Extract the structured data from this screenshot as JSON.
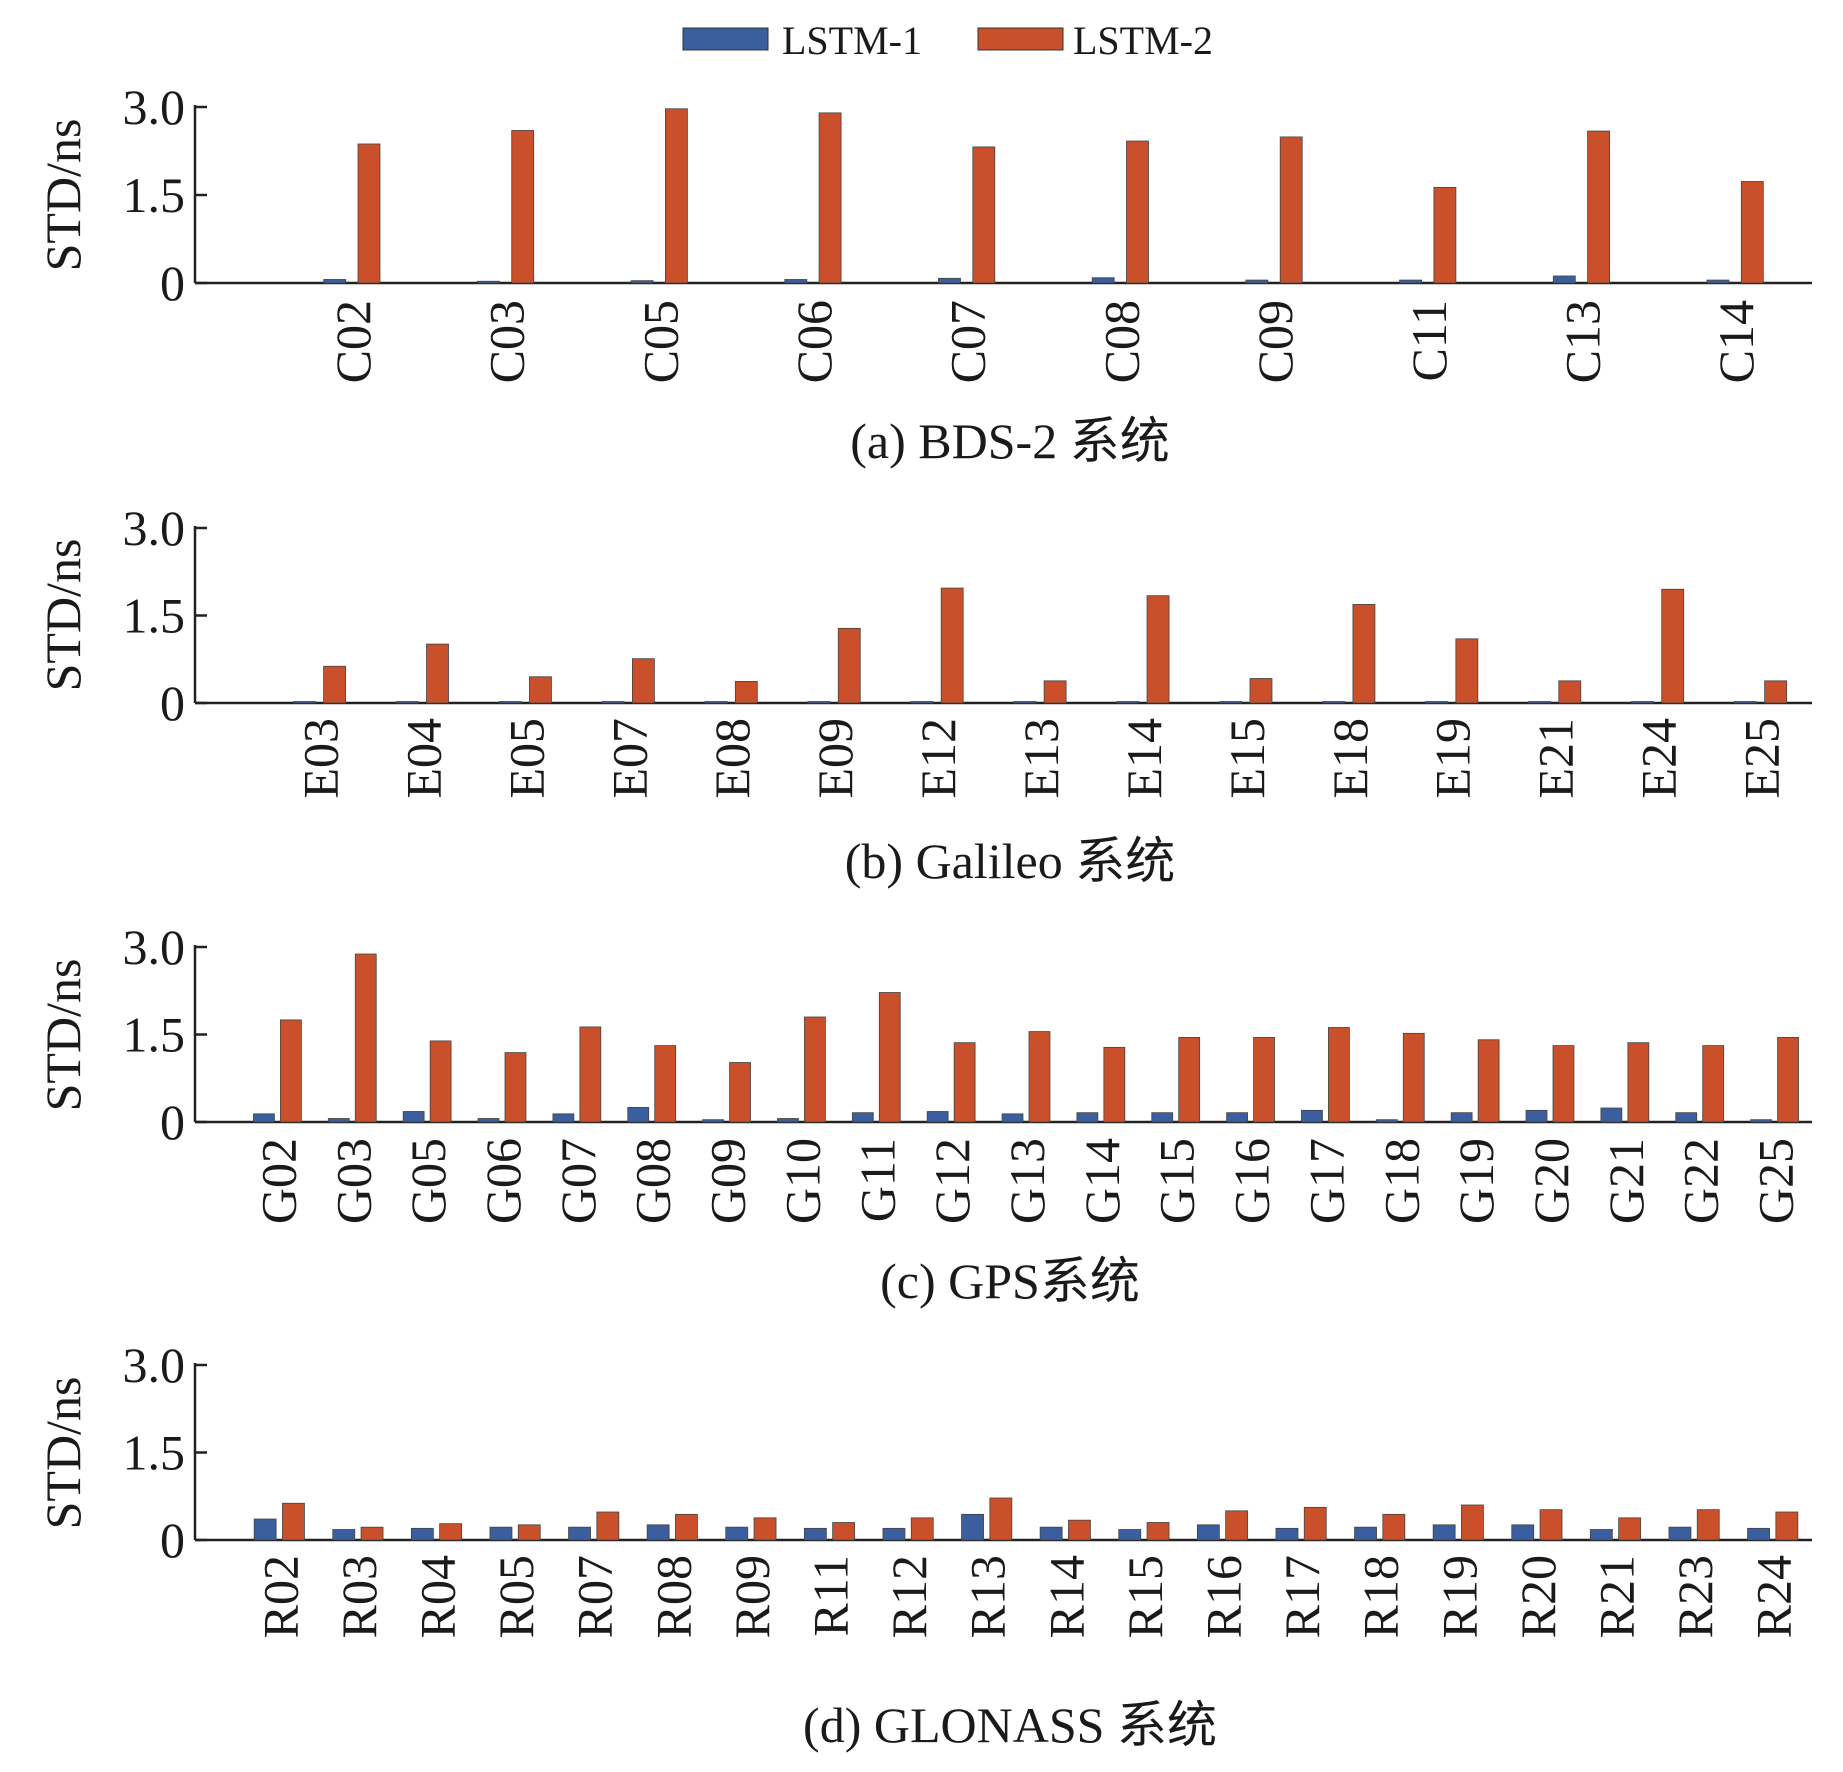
{
  "legend": {
    "items": [
      {
        "label": "LSTM-1",
        "color": "#3b5f9e"
      },
      {
        "label": "LSTM-2",
        "color": "#c9502a"
      }
    ]
  },
  "chart_data": [
    {
      "type": "bar",
      "caption": "(a) BDS-2 系统",
      "ylabel": "STD/ns",
      "ylim": [
        0,
        3.0
      ],
      "yticks": [
        "3.0",
        "1.5",
        "0"
      ],
      "categories": [
        "C02",
        "C03",
        "C05",
        "C06",
        "C07",
        "C08",
        "C09",
        "C11",
        "C13",
        "C14"
      ],
      "series": [
        {
          "name": "LSTM-1",
          "values": [
            0.06,
            0.03,
            0.04,
            0.06,
            0.08,
            0.09,
            0.05,
            0.05,
            0.12,
            0.05
          ]
        },
        {
          "name": "LSTM-2",
          "values": [
            2.37,
            2.6,
            2.97,
            2.9,
            2.32,
            2.42,
            2.49,
            1.63,
            2.59,
            1.73
          ]
        }
      ]
    },
    {
      "type": "bar",
      "caption": "(b) Galileo 系统",
      "ylabel": "STD/ns",
      "ylim": [
        0,
        3.0
      ],
      "yticks": [
        "3.0",
        "1.5",
        "0"
      ],
      "categories": [
        "E03",
        "E04",
        "E05",
        "E07",
        "E08",
        "E09",
        "E12",
        "E13",
        "E14",
        "E15",
        "E18",
        "E19",
        "E21",
        "E24",
        "E25"
      ],
      "series": [
        {
          "name": "LSTM-1",
          "values": [
            0.02,
            0.02,
            0.02,
            0.02,
            0.02,
            0.02,
            0.02,
            0.02,
            0.02,
            0.02,
            0.02,
            0.02,
            0.02,
            0.02,
            0.02
          ]
        },
        {
          "name": "LSTM-2",
          "values": [
            0.63,
            1.01,
            0.45,
            0.76,
            0.37,
            1.28,
            1.97,
            0.38,
            1.84,
            0.42,
            1.69,
            1.1,
            0.38,
            1.95,
            0.38
          ]
        }
      ]
    },
    {
      "type": "bar",
      "caption": "(c) GPS系统",
      "ylabel": "STD/ns",
      "ylim": [
        0,
        3.0
      ],
      "yticks": [
        "3.0",
        "1.5",
        "0"
      ],
      "categories": [
        "G02",
        "G03",
        "G05",
        "G06",
        "G07",
        "G08",
        "G09",
        "G10",
        "G11",
        "G12",
        "G13",
        "G14",
        "G15",
        "G16",
        "G17",
        "G18",
        "G19",
        "G20",
        "G21",
        "G22",
        "G25"
      ],
      "series": [
        {
          "name": "LSTM-1",
          "values": [
            0.14,
            0.06,
            0.18,
            0.06,
            0.14,
            0.25,
            0.04,
            0.06,
            0.16,
            0.18,
            0.14,
            0.16,
            0.16,
            0.16,
            0.2,
            0.04,
            0.16,
            0.2,
            0.24,
            0.16,
            0.04
          ]
        },
        {
          "name": "LSTM-2",
          "values": [
            1.75,
            2.88,
            1.39,
            1.19,
            1.63,
            1.31,
            1.02,
            1.8,
            2.22,
            1.36,
            1.55,
            1.28,
            1.45,
            1.45,
            1.62,
            1.52,
            1.41,
            1.31,
            1.36,
            1.31,
            1.45
          ]
        }
      ]
    },
    {
      "type": "bar",
      "caption": "(d) GLONASS 系统",
      "ylabel": "STD/ns",
      "ylim": [
        0,
        3.0
      ],
      "yticks": [
        "3.0",
        "1.5",
        "0"
      ],
      "categories": [
        "R02",
        "R03",
        "R04",
        "R05",
        "R07",
        "R08",
        "R09",
        "R11",
        "R12",
        "R13",
        "R14",
        "R15",
        "R16",
        "R17",
        "R18",
        "R19",
        "R20",
        "R21",
        "R23",
        "R24"
      ],
      "series": [
        {
          "name": "LSTM-1",
          "values": [
            0.36,
            0.18,
            0.2,
            0.22,
            0.22,
            0.26,
            0.22,
            0.2,
            0.2,
            0.44,
            0.22,
            0.18,
            0.26,
            0.2,
            0.22,
            0.26,
            0.26,
            0.18,
            0.22,
            0.2
          ]
        },
        {
          "name": "LSTM-2",
          "values": [
            0.63,
            0.22,
            0.28,
            0.26,
            0.48,
            0.44,
            0.38,
            0.3,
            0.38,
            0.72,
            0.34,
            0.3,
            0.5,
            0.56,
            0.44,
            0.6,
            0.52,
            0.38,
            0.52,
            0.48
          ]
        }
      ]
    }
  ]
}
